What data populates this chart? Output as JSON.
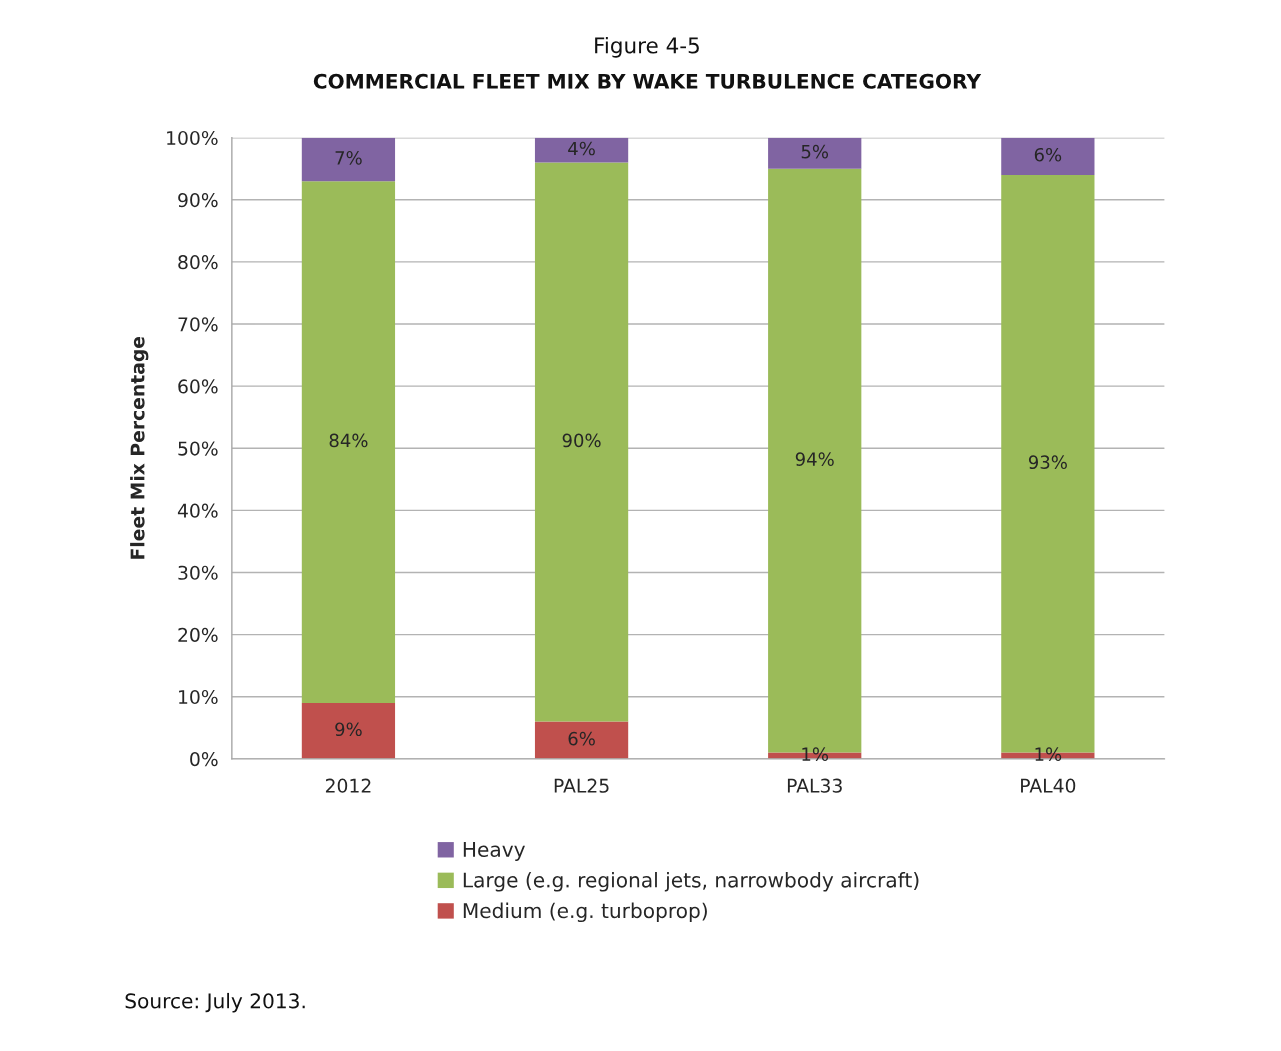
{
  "chart_data": {
    "type": "bar",
    "title": "Figure 4-5",
    "subtitle": "COMMERCIAL FLEET MIX BY WAKE TURBULENCE CATEGORY",
    "ylabel": "Fleet Mix Percentage",
    "categories": [
      "2012",
      "PAL25",
      "PAL33",
      "PAL40"
    ],
    "stacked": true,
    "series": [
      {
        "name": "Medium (e.g. turboprop)",
        "color": "#c0504d",
        "values": [
          9,
          6,
          1,
          1
        ],
        "value_labels": [
          "9%",
          "6%",
          "1%",
          "1%"
        ]
      },
      {
        "name": "Large (e.g. regional jets, narrowbody aircraft)",
        "color": "#9bbb59",
        "values": [
          84,
          90,
          94,
          93
        ],
        "value_labels": [
          "84%",
          "90%",
          "94%",
          "93%"
        ]
      },
      {
        "name": "Heavy",
        "color": "#8064a2",
        "values": [
          7,
          4,
          5,
          6
        ],
        "value_labels": [
          "7%",
          "4%",
          "5%",
          "6%"
        ]
      }
    ],
    "ylim": [
      0,
      100
    ],
    "yticks": [
      {
        "value": 0,
        "label": "0%"
      },
      {
        "value": 10,
        "label": "10%"
      },
      {
        "value": 20,
        "label": "20%"
      },
      {
        "value": 30,
        "label": "30%"
      },
      {
        "value": 40,
        "label": "40%"
      },
      {
        "value": 50,
        "label": "50%"
      },
      {
        "value": 60,
        "label": "60%"
      },
      {
        "value": 70,
        "label": "70%"
      },
      {
        "value": 80,
        "label": "80%"
      },
      {
        "value": 90,
        "label": "90%"
      },
      {
        "value": 100,
        "label": "100%"
      }
    ],
    "grid": "y",
    "legend": "bottom",
    "annotations": [
      "Source: July 2013."
    ]
  }
}
